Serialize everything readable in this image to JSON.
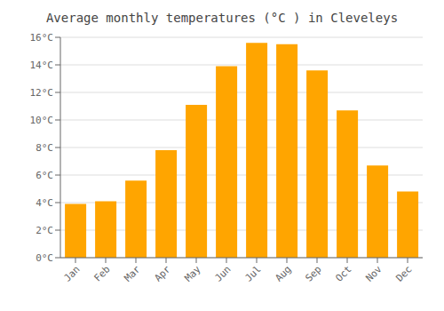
{
  "chart_data": {
    "type": "bar",
    "title": "Average monthly temperatures (°C ) in Cleveleys",
    "categories": [
      "Jan",
      "Feb",
      "Mar",
      "Apr",
      "May",
      "Jun",
      "Jul",
      "Aug",
      "Sep",
      "Oct",
      "Nov",
      "Dec"
    ],
    "values": [
      3.9,
      4.1,
      5.6,
      7.8,
      11.1,
      13.9,
      15.6,
      15.5,
      13.6,
      10.7,
      6.7,
      4.8
    ],
    "color": "#FFA500",
    "ylim": [
      0,
      16
    ],
    "yticks": [
      {
        "value": 0,
        "label": "0°C"
      },
      {
        "value": 2,
        "label": "2°C"
      },
      {
        "value": 4,
        "label": "4°C"
      },
      {
        "value": 6,
        "label": "6°C"
      },
      {
        "value": 8,
        "label": "8°C"
      },
      {
        "value": 10,
        "label": "10°C"
      },
      {
        "value": 12,
        "label": "12°C"
      },
      {
        "value": 14,
        "label": "14°C"
      },
      {
        "value": 16,
        "label": "16°C"
      }
    ],
    "grid": true
  }
}
